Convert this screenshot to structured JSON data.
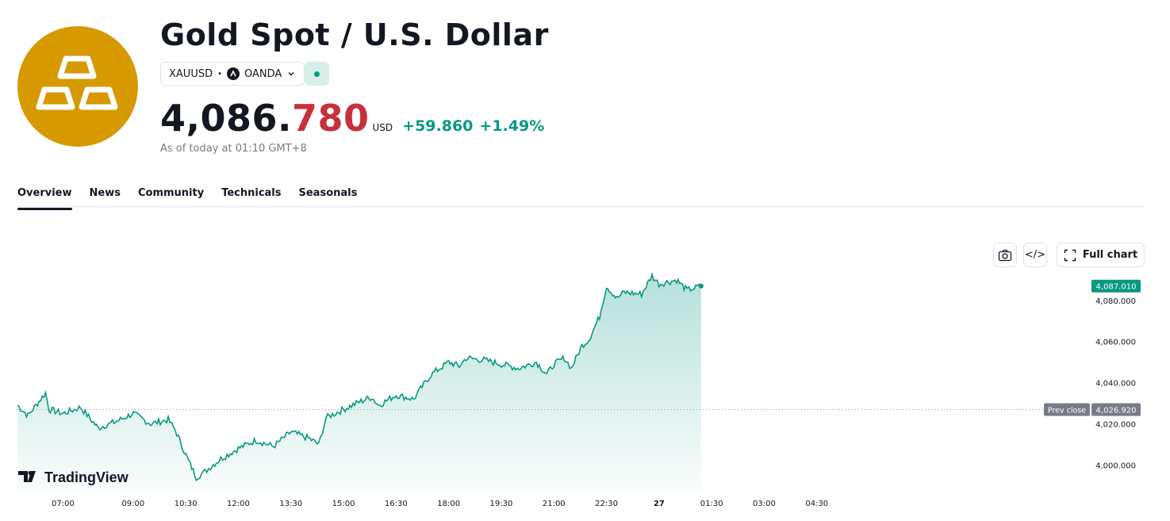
{
  "header": {
    "title": "Gold Spot / U.S. Dollar",
    "symbol": "XAUUSD",
    "separator": "•",
    "exchange": "OANDA",
    "logo_icon": "gold-bars-icon",
    "logo_color": "#d69a00",
    "market_status_icon": "market-open-dot-icon",
    "price_main": "4,086.",
    "price_tail": "780",
    "currency": "USD",
    "change": "+59.860",
    "change_pct": "+1.49%",
    "as_of": "As of today at 01:10 GMT+8"
  },
  "tabs": [
    {
      "label": "Overview",
      "active": true
    },
    {
      "label": "News",
      "active": false
    },
    {
      "label": "Community",
      "active": false
    },
    {
      "label": "Technicals",
      "active": false
    },
    {
      "label": "Seasonals",
      "active": false
    }
  ],
  "toolbar": {
    "snapshot_icon": "camera-icon",
    "embed_label": "</>",
    "full_chart_label": "Full chart"
  },
  "brand": {
    "watermark": "TradingView"
  },
  "chart_data": {
    "type": "area",
    "line_color": "#089981",
    "x_ticks": [
      "07:00",
      "09:00",
      "10:30",
      "12:00",
      "13:30",
      "15:00",
      "16:30",
      "18:00",
      "19:30",
      "21:00",
      "22:30",
      "27",
      "01:30",
      "03:00",
      "04:30"
    ],
    "y_ticks": [
      "4,080.000",
      "4,060.000",
      "4,040.000",
      "4,020.000",
      "4,000.000"
    ],
    "y_tick_values": [
      4080,
      4060,
      4040,
      4020,
      4000
    ],
    "ylim": [
      3987,
      4095
    ],
    "prev_close_label": "Prev close",
    "prev_close": 4026.92,
    "prev_close_text": "4,026.920",
    "last_price": 4087.01,
    "last_price_text": "4,087.010",
    "x_hours": [
      5.7,
      6.0,
      6.5,
      6.6,
      7.0,
      7.5,
      8.0,
      8.5,
      9.0,
      9.5,
      10.0,
      10.2,
      10.5,
      10.8,
      11.0,
      11.2,
      11.5,
      12.0,
      12.5,
      13.0,
      13.5,
      14.0,
      14.3,
      14.5,
      15.0,
      15.5,
      15.8,
      16.0,
      16.5,
      17.0,
      17.2,
      17.5,
      18.0,
      18.3,
      18.5,
      19.0,
      19.5,
      20.0,
      20.5,
      20.8,
      21.0,
      21.3,
      21.5,
      21.8,
      22.0,
      22.3,
      22.5,
      22.8,
      23.0,
      23.5,
      23.8,
      24.0,
      24.5,
      24.8,
      25.0,
      25.2
    ],
    "y_values": [
      4029,
      4024,
      4035,
      4027,
      4025,
      4028,
      4018,
      4021,
      4025,
      4020,
      4022,
      4017,
      4005,
      3994,
      3996,
      3999,
      4003,
      4008,
      4012,
      4009,
      4016,
      4013,
      4010,
      4023,
      4027,
      4031,
      4033,
      4029,
      4034,
      4032,
      4037,
      4044,
      4050,
      4048,
      4052,
      4051,
      4049,
      4047,
      4050,
      4044,
      4049,
      4052,
      4047,
      4058,
      4061,
      4072,
      4087,
      4081,
      4084,
      4083,
      4092,
      4088,
      4090,
      4085,
      4086,
      4087.01
    ]
  }
}
